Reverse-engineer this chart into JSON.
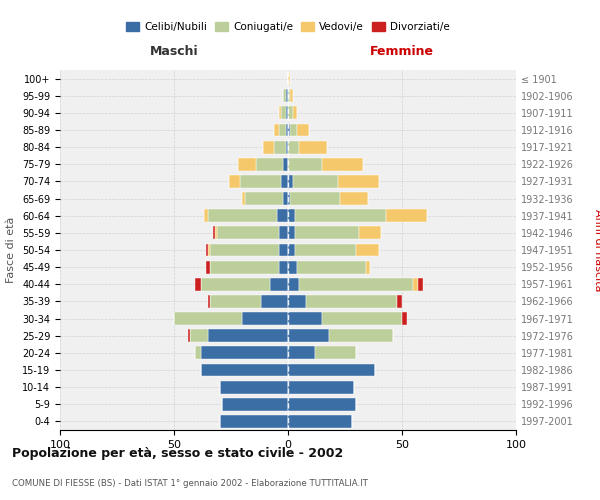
{
  "age_groups": [
    "0-4",
    "5-9",
    "10-14",
    "15-19",
    "20-24",
    "25-29",
    "30-34",
    "35-39",
    "40-44",
    "45-49",
    "50-54",
    "55-59",
    "60-64",
    "65-69",
    "70-74",
    "75-79",
    "80-84",
    "85-89",
    "90-94",
    "95-99",
    "100+"
  ],
  "birth_years": [
    "1997-2001",
    "1992-1996",
    "1987-1991",
    "1982-1986",
    "1977-1981",
    "1972-1976",
    "1967-1971",
    "1962-1966",
    "1957-1961",
    "1952-1956",
    "1947-1951",
    "1942-1946",
    "1937-1941",
    "1932-1936",
    "1927-1931",
    "1922-1926",
    "1917-1921",
    "1912-1916",
    "1907-1911",
    "1902-1906",
    "≤ 1901"
  ],
  "colors": {
    "celibi": "#3A6EA5",
    "coniugati": "#BCCE9A",
    "vedovi": "#F5C96B",
    "divorziati": "#CC2020"
  },
  "males_celibi": [
    30,
    29,
    30,
    38,
    38,
    35,
    20,
    12,
    8,
    4,
    4,
    4,
    5,
    2,
    3,
    2,
    1,
    1,
    1,
    1,
    0
  ],
  "males_coniugati": [
    0,
    0,
    0,
    0,
    3,
    8,
    30,
    22,
    30,
    30,
    30,
    27,
    30,
    17,
    18,
    12,
    5,
    3,
    2,
    1,
    0
  ],
  "males_vedovi": [
    0,
    0,
    0,
    0,
    0,
    0,
    0,
    0,
    0,
    0,
    1,
    1,
    2,
    1,
    5,
    8,
    5,
    2,
    1,
    0,
    0
  ],
  "males_divorziati": [
    0,
    0,
    0,
    0,
    0,
    1,
    0,
    1,
    3,
    2,
    1,
    1,
    0,
    0,
    0,
    0,
    0,
    0,
    0,
    0,
    0
  ],
  "females_celibi": [
    28,
    30,
    29,
    38,
    12,
    18,
    15,
    8,
    5,
    4,
    3,
    3,
    3,
    1,
    2,
    0,
    0,
    1,
    0,
    0,
    0
  ],
  "females_coniugati": [
    0,
    0,
    0,
    0,
    18,
    28,
    35,
    40,
    50,
    30,
    27,
    28,
    40,
    22,
    20,
    15,
    5,
    3,
    2,
    1,
    0
  ],
  "females_vedovi": [
    0,
    0,
    0,
    0,
    0,
    0,
    0,
    0,
    2,
    2,
    10,
    10,
    18,
    12,
    18,
    18,
    12,
    5,
    2,
    1,
    1
  ],
  "females_divorziati": [
    0,
    0,
    0,
    0,
    0,
    0,
    2,
    2,
    2,
    0,
    0,
    0,
    0,
    0,
    0,
    0,
    0,
    0,
    0,
    0,
    0
  ],
  "title": "Popolazione per età, sesso e stato civile - 2002",
  "subtitle": "COMUNE DI FIESSE (BS) - Dati ISTAT 1° gennaio 2002 - Elaborazione TUTTITALIA.IT",
  "xlabel_left": "Maschi",
  "xlabel_right": "Femmine",
  "ylabel_left": "Fasce di età",
  "ylabel_right": "Anni di nascita",
  "legend_labels": [
    "Celibi/Nubili",
    "Coniugati/e",
    "Vedovi/e",
    "Divorziati/e"
  ],
  "xlim": 100
}
